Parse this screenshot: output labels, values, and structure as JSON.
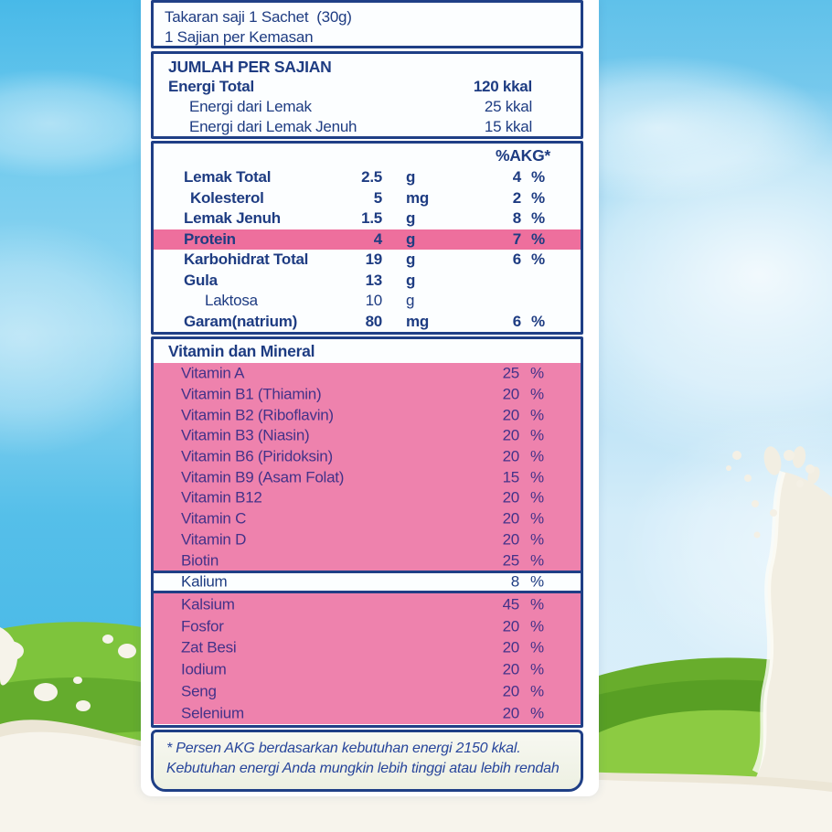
{
  "panel": {
    "serving": {
      "line1": "Takaran saji 1 Sachet  (30g)",
      "line2": "1 Sajian per Kemasan"
    },
    "energy": {
      "header": "JUMLAH PER SAJIAN",
      "rows": [
        {
          "label": "Energi Total",
          "value": "120 kkal",
          "bold": true,
          "indent": false
        },
        {
          "label": "Energi dari Lemak",
          "value": "25 kkal",
          "bold": false,
          "indent": true
        },
        {
          "label": "Energi dari Lemak Jenuh",
          "value": "15 kkal",
          "bold": false,
          "indent": true
        }
      ]
    },
    "akg_header": "%AKG*",
    "macros": [
      {
        "label": "Lemak Total",
        "amount": "2.5",
        "unit": "g",
        "akg": "4",
        "akg_unit": "%",
        "indent": 0,
        "bold": true,
        "highlight": false
      },
      {
        "label": "Kolesterol",
        "amount": "5",
        "unit": "mg",
        "akg": "2",
        "akg_unit": "%",
        "indent": 1,
        "bold": true,
        "highlight": false
      },
      {
        "label": "Lemak Jenuh",
        "amount": "1.5",
        "unit": "g",
        "akg": "8",
        "akg_unit": "%",
        "indent": 0,
        "bold": true,
        "highlight": false
      },
      {
        "label": "Protein",
        "amount": "4",
        "unit": "g",
        "akg": "7",
        "akg_unit": "%",
        "indent": 0,
        "bold": true,
        "highlight": true
      },
      {
        "label": "Karbohidrat Total",
        "amount": "19",
        "unit": "g",
        "akg": "6",
        "akg_unit": "%",
        "indent": 0,
        "bold": true,
        "highlight": false
      },
      {
        "label": "Gula",
        "amount": "13",
        "unit": "g",
        "akg": "",
        "akg_unit": "",
        "indent": 0,
        "bold": true,
        "highlight": false
      },
      {
        "label": "Laktosa",
        "amount": "10",
        "unit": "g",
        "akg": "",
        "akg_unit": "",
        "indent": 2,
        "bold": false,
        "highlight": false
      },
      {
        "label": "Garam(natrium)",
        "amount": "80",
        "unit": "mg",
        "akg": "6",
        "akg_unit": "%",
        "indent": 0,
        "bold": true,
        "highlight": false
      }
    ],
    "vitamins_header": "Vitamin dan Mineral",
    "vitamins": [
      {
        "label": "Vitamin A",
        "value": "25",
        "unit": "%"
      },
      {
        "label": "Vitamin B1 (Thiamin)",
        "value": "20",
        "unit": "%"
      },
      {
        "label": "Vitamin B2 (Riboflavin)",
        "value": "20",
        "unit": "%"
      },
      {
        "label": "Vitamin B3 (Niasin)",
        "value": "20",
        "unit": "%"
      },
      {
        "label": "Vitamin B6 (Piridoksin)",
        "value": "20",
        "unit": "%"
      },
      {
        "label": "Vitamin B9 (Asam Folat)",
        "value": "15",
        "unit": "%"
      },
      {
        "label": "Vitamin B12",
        "value": "20",
        "unit": "%"
      },
      {
        "label": "Vitamin C",
        "value": "20",
        "unit": "%"
      },
      {
        "label": "Vitamin D",
        "value": "20",
        "unit": "%"
      },
      {
        "label": "Biotin",
        "value": "25",
        "unit": "%"
      }
    ],
    "kalium": {
      "label": "Kalium",
      "value": "8",
      "unit": "%"
    },
    "minerals": [
      {
        "label": "Kalsium",
        "value": "45",
        "unit": "%"
      },
      {
        "label": "Fosfor",
        "value": "20",
        "unit": "%"
      },
      {
        "label": "Zat Besi",
        "value": "20",
        "unit": "%"
      },
      {
        "label": "Iodium",
        "value": "20",
        "unit": "%"
      },
      {
        "label": "Seng",
        "value": "20",
        "unit": "%"
      },
      {
        "label": "Selenium",
        "value": "20",
        "unit": "%"
      }
    ],
    "footnote": {
      "line1": "* Persen AKG berdasarkan kebutuhan energi 2150 kkal.",
      "line2": "Kebutuhan energi Anda mungkin lebih tinggi atau lebih rendah"
    }
  },
  "colors": {
    "navy": "#1f3f86",
    "text_navy": "#1e3c82",
    "text_on_pink": "#433289",
    "pink_highlight": "#ee6f9d",
    "pink_block": "#ee82ad",
    "sky_left": "#48b9e8",
    "sky_right_top": "#5fc1ea",
    "grass_light": "#8ccb42",
    "grass_dark": "#5fa82a",
    "milk": "#f4f1e8"
  }
}
